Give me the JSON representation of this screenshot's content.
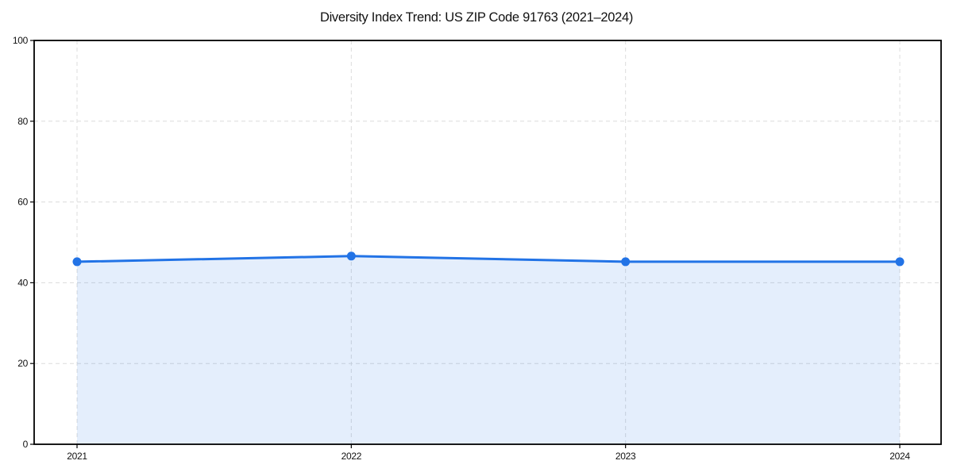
{
  "chart_data": {
    "type": "area",
    "title": "Diversity Index Trend: US ZIP Code 91763 (2021–2024)",
    "x": [
      2021,
      2022,
      2023,
      2024
    ],
    "xtick_labels": [
      "2021",
      "2022",
      "2023",
      "2024"
    ],
    "series": [
      {
        "name": "Diversity Index",
        "values": [
          45.2,
          46.6,
          45.2,
          45.2
        ]
      }
    ],
    "xlabel": "",
    "ylabel": "",
    "ylim": [
      0,
      100
    ],
    "yticks": [
      0,
      20,
      40,
      60,
      80,
      100
    ],
    "grid": "dashed, horizontal and vertical",
    "legend_position": "none",
    "marker": "circle",
    "colors": {
      "line": "#2273e6",
      "marker": "#2273e6",
      "fill": "rgba(34, 115, 230, 0.12)",
      "grid": "#dcdcdc",
      "axis": "#000000",
      "tick_label": "#111111",
      "background": "#ffffff"
    }
  }
}
